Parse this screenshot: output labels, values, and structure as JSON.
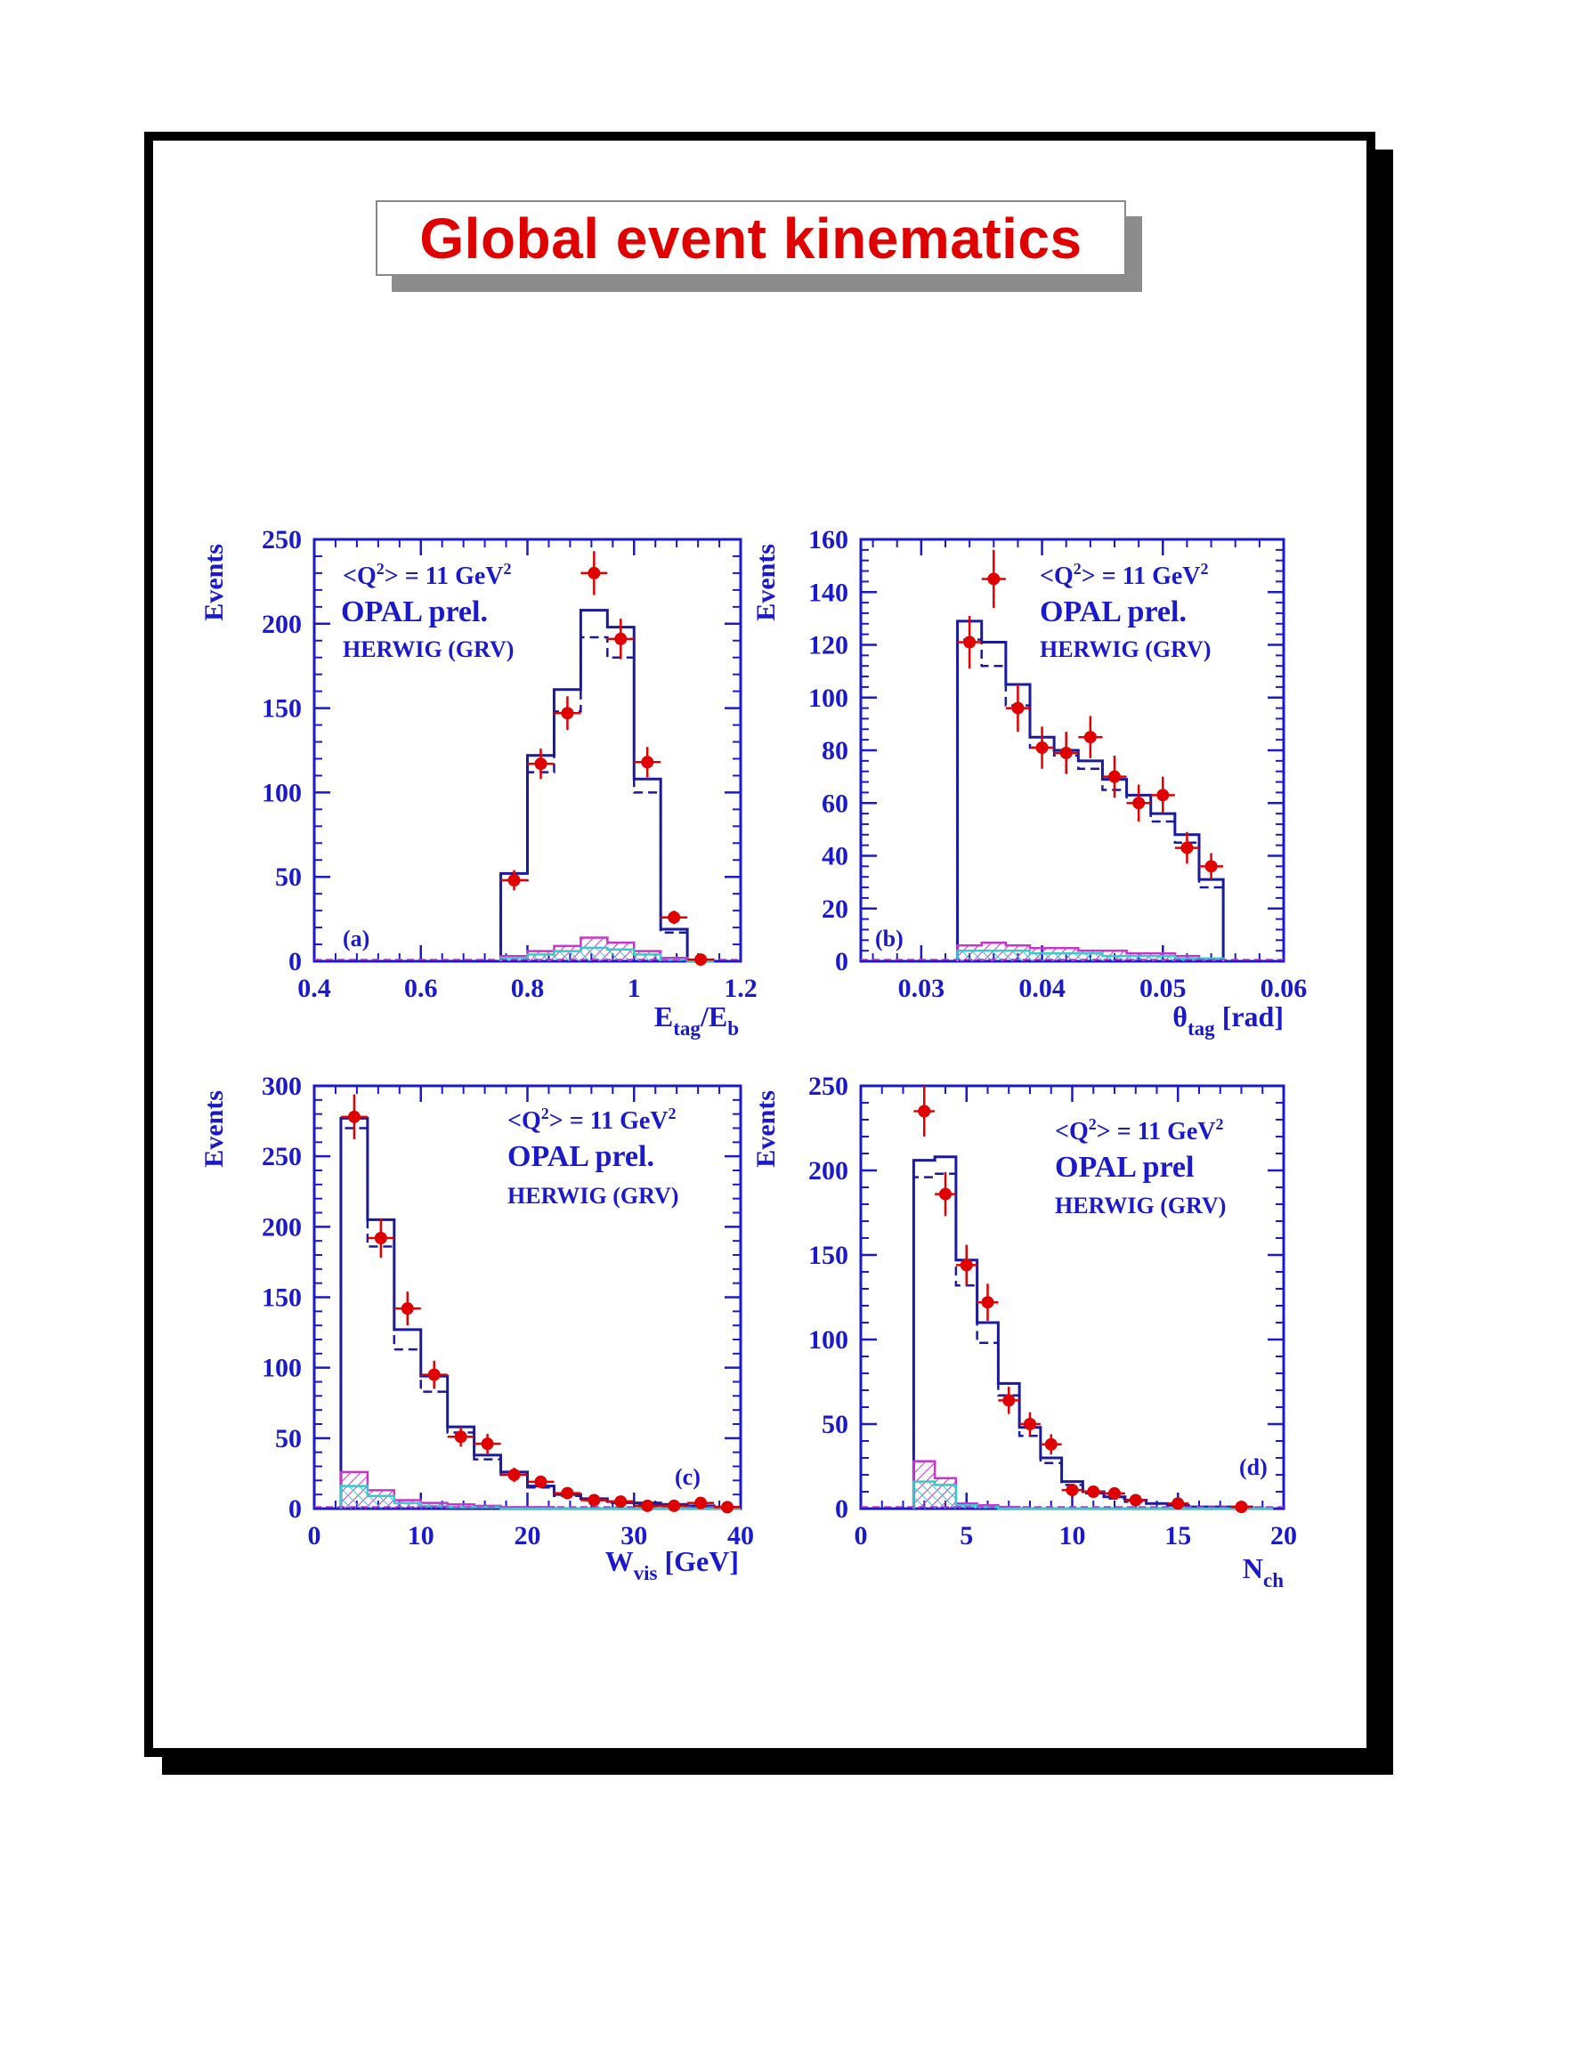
{
  "page_title": "Global event kinematics",
  "colors": {
    "frame": "#000000",
    "title": "#e00000",
    "axis": "#1a1acc",
    "mc_solid": "#1a1a9e",
    "mc_dashed": "#1a1a9e",
    "data_points": "#e00000",
    "bkg_magenta": "#cc33cc",
    "bkg_cyan": "#33cccc"
  },
  "chart_data": [
    {
      "type": "bar",
      "panel": "(a)",
      "xlabel": "E_tag/E_b",
      "ylabel": "Events",
      "xlim": [
        0.4,
        1.2
      ],
      "ylim": [
        0,
        250
      ],
      "xticks": [
        "0.4",
        "0.6",
        "0.8",
        "1",
        "1.2"
      ],
      "yticks": [
        "0",
        "50",
        "100",
        "150",
        "200",
        "250"
      ],
      "annotations": [
        "<Q²> = 11 GeV²",
        "OPAL prel.",
        "HERWIG (GRV)"
      ],
      "bin_edges": [
        0.75,
        0.8,
        0.85,
        0.9,
        0.95,
        1.0,
        1.05,
        1.1,
        1.15
      ],
      "series": [
        {
          "style": "solid",
          "values": [
            52,
            122,
            161,
            208,
            198,
            108,
            19,
            0
          ]
        },
        {
          "style": "dashed",
          "values": [
            48,
            112,
            148,
            192,
            180,
            100,
            17,
            0
          ]
        },
        {
          "style": "magenta",
          "values": [
            3,
            6,
            9,
            14,
            11,
            6,
            2,
            0
          ]
        },
        {
          "style": "cyan",
          "values": [
            2,
            4,
            6,
            8,
            7,
            4,
            1,
            0
          ]
        }
      ],
      "data_points": [
        {
          "x": 0.775,
          "y": 48,
          "err": 6
        },
        {
          "x": 0.825,
          "y": 117,
          "err": 9
        },
        {
          "x": 0.875,
          "y": 147,
          "err": 10
        },
        {
          "x": 0.925,
          "y": 230,
          "err": 13
        },
        {
          "x": 0.975,
          "y": 191,
          "err": 12
        },
        {
          "x": 1.025,
          "y": 118,
          "err": 9
        },
        {
          "x": 1.075,
          "y": 26,
          "err": 4
        },
        {
          "x": 1.125,
          "y": 1,
          "err": 1
        }
      ]
    },
    {
      "type": "bar",
      "panel": "(b)",
      "xlabel": "θ_tag [rad]",
      "ylabel": "Events",
      "xlim": [
        0.025,
        0.06
      ],
      "ylim": [
        0,
        160
      ],
      "xticks": [
        "0.03",
        "0.04",
        "0.05",
        "0.06"
      ],
      "xtick_values": [
        0.03,
        0.04,
        0.05,
        0.06
      ],
      "yticks": [
        "0",
        "20",
        "40",
        "60",
        "80",
        "100",
        "120",
        "140",
        "160"
      ],
      "annotations": [
        "<Q²> = 11 GeV²",
        "OPAL prel.",
        "HERWIG (GRV)"
      ],
      "bin_edges": [
        0.033,
        0.035,
        0.037,
        0.039,
        0.041,
        0.043,
        0.045,
        0.047,
        0.049,
        0.051,
        0.053,
        0.055
      ],
      "series": [
        {
          "style": "solid",
          "values": [
            129,
            121,
            105,
            85,
            80,
            76,
            69,
            63,
            56,
            48,
            31
          ]
        },
        {
          "style": "dashed",
          "values": [
            122,
            112,
            97,
            81,
            78,
            73,
            65,
            60,
            53,
            45,
            28
          ]
        },
        {
          "style": "magenta",
          "values": [
            6,
            7,
            6,
            5,
            5,
            4,
            4,
            3,
            3,
            2,
            1
          ]
        },
        {
          "style": "cyan",
          "values": [
            4,
            4,
            4,
            3,
            3,
            3,
            2,
            2,
            2,
            1,
            1
          ]
        }
      ],
      "data_points": [
        {
          "x": 0.034,
          "y": 121,
          "err": 10
        },
        {
          "x": 0.036,
          "y": 145,
          "err": 11
        },
        {
          "x": 0.038,
          "y": 96,
          "err": 9
        },
        {
          "x": 0.04,
          "y": 81,
          "err": 8
        },
        {
          "x": 0.042,
          "y": 79,
          "err": 8
        },
        {
          "x": 0.044,
          "y": 85,
          "err": 8
        },
        {
          "x": 0.046,
          "y": 70,
          "err": 8
        },
        {
          "x": 0.048,
          "y": 60,
          "err": 7
        },
        {
          "x": 0.05,
          "y": 63,
          "err": 7
        },
        {
          "x": 0.052,
          "y": 43,
          "err": 6
        },
        {
          "x": 0.054,
          "y": 36,
          "err": 5
        }
      ]
    },
    {
      "type": "bar",
      "panel": "(c)",
      "xlabel": "W_vis [GeV]",
      "ylabel": "Events",
      "xlim": [
        0,
        40
      ],
      "ylim": [
        0,
        300
      ],
      "xticks": [
        "0",
        "10",
        "20",
        "30",
        "40"
      ],
      "yticks": [
        "0",
        "50",
        "100",
        "150",
        "200",
        "250",
        "300"
      ],
      "annotations": [
        "<Q²> = 11 GeV²",
        "OPAL prel.",
        "HERWIG (GRV)"
      ],
      "bin_edges": [
        2.5,
        5,
        7.5,
        10,
        12.5,
        15,
        17.5,
        20,
        22.5,
        25,
        27.5,
        30,
        32.5,
        35,
        37.5,
        40
      ],
      "series": [
        {
          "style": "solid",
          "values": [
            277,
            205,
            127,
            94,
            58,
            38,
            26,
            16,
            10,
            7,
            5,
            4,
            3,
            2,
            1
          ]
        },
        {
          "style": "dashed",
          "values": [
            270,
            186,
            113,
            83,
            54,
            35,
            24,
            15,
            9,
            6,
            4,
            3,
            2,
            2,
            1
          ]
        },
        {
          "style": "magenta",
          "values": [
            26,
            13,
            6,
            4,
            3,
            2,
            1,
            1,
            0,
            0,
            0,
            0,
            0,
            0,
            0
          ]
        },
        {
          "style": "cyan",
          "values": [
            16,
            9,
            4,
            2,
            1,
            1,
            0,
            0,
            0,
            0,
            0,
            0,
            0,
            0,
            0
          ]
        }
      ],
      "data_points": [
        {
          "x": 3.75,
          "y": 278,
          "err": 16
        },
        {
          "x": 6.25,
          "y": 192,
          "err": 14
        },
        {
          "x": 8.75,
          "y": 142,
          "err": 12
        },
        {
          "x": 11.25,
          "y": 95,
          "err": 10
        },
        {
          "x": 13.75,
          "y": 51,
          "err": 7
        },
        {
          "x": 16.25,
          "y": 46,
          "err": 7
        },
        {
          "x": 18.75,
          "y": 24,
          "err": 5
        },
        {
          "x": 21.25,
          "y": 19,
          "err": 4
        },
        {
          "x": 23.75,
          "y": 11,
          "err": 3
        },
        {
          "x": 26.25,
          "y": 6,
          "err": 2
        },
        {
          "x": 28.75,
          "y": 5,
          "err": 2
        },
        {
          "x": 31.25,
          "y": 2,
          "err": 1
        },
        {
          "x": 33.75,
          "y": 2,
          "err": 1
        },
        {
          "x": 36.25,
          "y": 4,
          "err": 2
        },
        {
          "x": 38.75,
          "y": 1,
          "err": 1
        }
      ]
    },
    {
      "type": "bar",
      "panel": "(d)",
      "xlabel": "N_ch",
      "ylabel": "Events",
      "xlim": [
        0,
        20
      ],
      "ylim": [
        0,
        250
      ],
      "xticks": [
        "0",
        "5",
        "10",
        "15",
        "20"
      ],
      "yticks": [
        "0",
        "50",
        "100",
        "150",
        "200",
        "250"
      ],
      "annotations": [
        "<Q²> = 11 GeV²",
        "OPAL prel",
        "HERWIG (GRV)"
      ],
      "bin_edges": [
        2.5,
        3.5,
        4.5,
        5.5,
        6.5,
        7.5,
        8.5,
        9.5,
        10.5,
        11.5,
        12.5,
        13.5,
        14.5,
        15.5,
        16.5,
        17.5,
        18.5,
        19.5
      ],
      "series": [
        {
          "style": "solid",
          "values": [
            206,
            208,
            147,
            110,
            74,
            48,
            30,
            16,
            10,
            7,
            5,
            3,
            2,
            1,
            1,
            1,
            0
          ]
        },
        {
          "style": "dashed",
          "values": [
            196,
            198,
            132,
            98,
            67,
            43,
            27,
            14,
            9,
            6,
            4,
            3,
            2,
            1,
            1,
            0,
            0
          ]
        },
        {
          "style": "magenta",
          "values": [
            28,
            18,
            3,
            2,
            1,
            0,
            0,
            0,
            0,
            0,
            0,
            0,
            0,
            0,
            0,
            0,
            0
          ]
        },
        {
          "style": "cyan",
          "values": [
            16,
            14,
            2,
            1,
            0,
            0,
            0,
            0,
            0,
            0,
            0,
            0,
            0,
            0,
            0,
            0,
            0
          ]
        }
      ],
      "data_points": [
        {
          "x": 3,
          "y": 235,
          "err": 15
        },
        {
          "x": 4,
          "y": 186,
          "err": 13
        },
        {
          "x": 5,
          "y": 144,
          "err": 12
        },
        {
          "x": 6,
          "y": 122,
          "err": 11
        },
        {
          "x": 7,
          "y": 64,
          "err": 8
        },
        {
          "x": 8,
          "y": 50,
          "err": 7
        },
        {
          "x": 9,
          "y": 38,
          "err": 6
        },
        {
          "x": 10,
          "y": 11,
          "err": 3
        },
        {
          "x": 11,
          "y": 10,
          "err": 3
        },
        {
          "x": 12,
          "y": 9,
          "err": 3
        },
        {
          "x": 13,
          "y": 5,
          "err": 2
        },
        {
          "x": 15,
          "y": 3,
          "err": 2
        },
        {
          "x": 18,
          "y": 1,
          "err": 1
        }
      ]
    }
  ]
}
